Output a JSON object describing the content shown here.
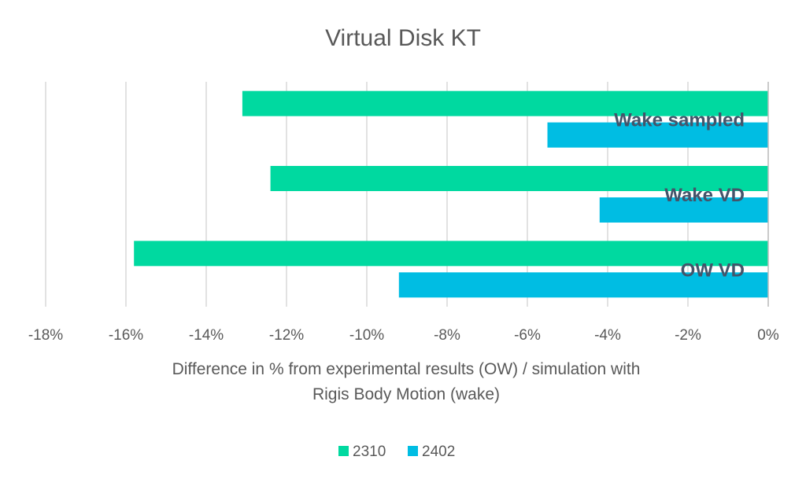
{
  "chart_data": {
    "type": "bar",
    "orientation": "horizontal",
    "title": "Virtual Disk KT",
    "xlabel_lines": [
      "Difference in % from experimental results (OW) / simulation with",
      "Rigis Body Motion (wake)"
    ],
    "ylabel": "",
    "categories": [
      "Wake sampled",
      "Wake VD",
      "OW VD"
    ],
    "series": [
      {
        "name": "2310",
        "color": "#00d9a0",
        "values": [
          -13.1,
          -12.4,
          -15.8
        ]
      },
      {
        "name": "2402",
        "color": "#00bde3",
        "values": [
          -5.5,
          -4.2,
          -9.2
        ]
      }
    ],
    "xlim": [
      -18,
      0
    ],
    "x_ticks": [
      "-18%",
      "-16%",
      "-14%",
      "-12%",
      "-10%",
      "-8%",
      "-6%",
      "-4%",
      "-2%",
      "0%"
    ],
    "grid": "vertical",
    "legend_position": "bottom",
    "category_labels_position": "inside-right"
  }
}
